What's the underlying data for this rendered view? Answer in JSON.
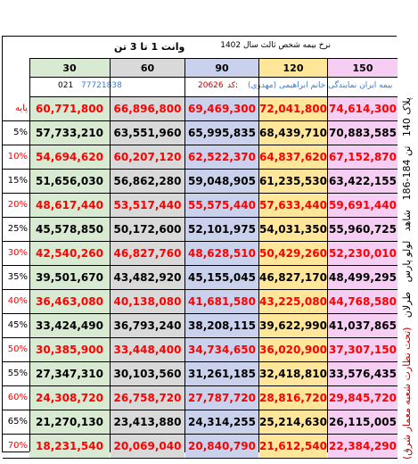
{
  "header": {
    "title_small": "نرخ بیمه شخص ثالث سال 1402",
    "title_big": "وانت 1 تا 3 تن"
  },
  "columns": [
    {
      "label": "30",
      "color": "#d9ead3"
    },
    {
      "label": "60",
      "color": "#d9d9d9"
    },
    {
      "label": "90",
      "color": "#c9d1ec"
    },
    {
      "label": "120",
      "color": "#ffe699"
    },
    {
      "label": "150",
      "color": "#f6cdf3"
    }
  ],
  "info": {
    "phone_code": "021",
    "phone": "77721838",
    "agent": "بیمه ایران نمایندگی خانم ابراهیمی (مهدوی)",
    "code_label": "کد:",
    "code": "20626"
  },
  "rows": [
    {
      "label": "پایه",
      "label_color": "#ff0000",
      "text_color": "#ff0000",
      "values": [
        "60,771,800",
        "66,896,800",
        "69,469,300",
        "72,041,800",
        "74,614,300"
      ]
    },
    {
      "label": "5%",
      "label_color": "#000000",
      "text_color": "#000000",
      "values": [
        "57,733,210",
        "63,551,960",
        "65,995,835",
        "68,439,710",
        "70,883,585"
      ]
    },
    {
      "label": "10%",
      "label_color": "#ff0000",
      "text_color": "#ff0000",
      "values": [
        "54,694,620",
        "60,207,120",
        "62,522,370",
        "64,837,620",
        "67,152,870"
      ]
    },
    {
      "label": "15%",
      "label_color": "#000000",
      "text_color": "#000000",
      "values": [
        "51,656,030",
        "56,862,280",
        "59,048,905",
        "61,235,530",
        "63,422,155"
      ]
    },
    {
      "label": "20%",
      "label_color": "#ff0000",
      "text_color": "#ff0000",
      "values": [
        "48,617,440",
        "53,517,440",
        "55,575,440",
        "57,633,440",
        "59,691,440"
      ]
    },
    {
      "label": "25%",
      "label_color": "#000000",
      "text_color": "#000000",
      "values": [
        "45,578,850",
        "50,172,600",
        "52,101,975",
        "54,031,350",
        "55,960,725"
      ]
    },
    {
      "label": "30%",
      "label_color": "#ff0000",
      "text_color": "#ff0000",
      "values": [
        "42,540,260",
        "46,827,760",
        "48,628,510",
        "50,429,260",
        "52,230,010"
      ]
    },
    {
      "label": "35%",
      "label_color": "#000000",
      "text_color": "#000000",
      "values": [
        "39,501,670",
        "43,482,920",
        "45,155,045",
        "46,827,170",
        "48,499,295"
      ]
    },
    {
      "label": "40%",
      "label_color": "#ff0000",
      "text_color": "#ff0000",
      "values": [
        "36,463,080",
        "40,138,080",
        "41,681,580",
        "43,225,080",
        "44,768,580"
      ]
    },
    {
      "label": "45%",
      "label_color": "#000000",
      "text_color": "#000000",
      "values": [
        "33,424,490",
        "36,793,240",
        "38,208,115",
        "39,622,990",
        "41,037,865"
      ]
    },
    {
      "label": "50%",
      "label_color": "#ff0000",
      "text_color": "#ff0000",
      "values": [
        "30,385,900",
        "33,448,400",
        "34,734,650",
        "36,020,900",
        "37,307,150"
      ]
    },
    {
      "label": "55%",
      "label_color": "#000000",
      "text_color": "#000000",
      "values": [
        "27,347,310",
        "30,103,560",
        "31,261,185",
        "32,418,810",
        "33,576,435"
      ]
    },
    {
      "label": "60%",
      "label_color": "#ff0000",
      "text_color": "#ff0000",
      "values": [
        "24,308,720",
        "26,758,720",
        "27,787,720",
        "28,816,720",
        "29,845,720"
      ]
    },
    {
      "label": "65%",
      "label_color": "#000000",
      "text_color": "#000000",
      "values": [
        "21,270,130",
        "23,413,880",
        "24,314,255",
        "25,214,630",
        "26,115,005"
      ]
    },
    {
      "label": "70%",
      "label_color": "#ff0000",
      "text_color": "#ff0000",
      "values": [
        "18,231,540",
        "20,069,040",
        "20,840,790",
        "21,612,540",
        "22,384,290"
      ]
    }
  ],
  "side_text": {
    "part1": "(تحت نظارت شعبه معمار شرق)",
    "part2": "پلاک 140",
    "part3": "تن 184-186",
    "part4": "شاهد",
    "part5": "لولو پارس",
    "part6": "طرلان"
  }
}
